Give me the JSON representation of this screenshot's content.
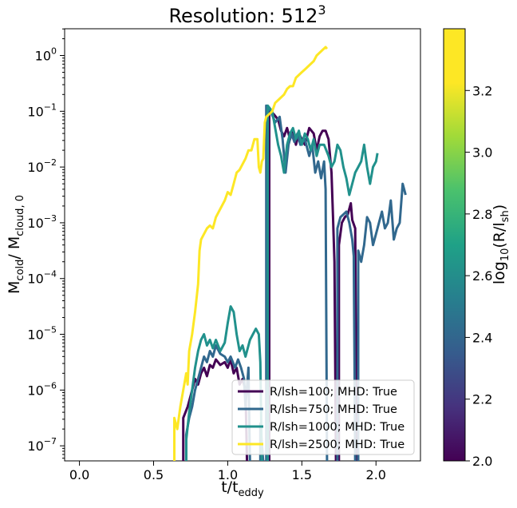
{
  "chart_data": {
    "type": "line",
    "title_main": "Resolution: 512",
    "title_sup": "3",
    "xlabel": {
      "main": "t/t",
      "sub": "eddy"
    },
    "ylabel": {
      "m1": "M",
      "s1": "cold",
      "m2": "/ M",
      "s2": "cloud, 0"
    },
    "xlim": [
      -0.1,
      2.3
    ],
    "ylim_log10": [
      -7.27,
      0.48
    ],
    "y_scale": "log",
    "x_ticks": [
      0.0,
      0.5,
      1.0,
      1.5,
      2.0
    ],
    "x_tick_labels": [
      "0.0",
      "0.5",
      "1.0",
      "1.5",
      "2.0"
    ],
    "y_ticks": [
      {
        "exp": 0,
        "mant": "10",
        "sup": "0"
      },
      {
        "exp": -1,
        "mant": "10",
        "sup": "−1"
      },
      {
        "exp": -2,
        "mant": "10",
        "sup": "−2"
      },
      {
        "exp": -3,
        "mant": "10",
        "sup": "−3"
      },
      {
        "exp": -4,
        "mant": "10",
        "sup": "−4"
      },
      {
        "exp": -5,
        "mant": "10",
        "sup": "−5"
      },
      {
        "exp": -6,
        "mant": "10",
        "sup": "−6"
      },
      {
        "exp": -7,
        "mant": "10",
        "sup": "−7"
      }
    ],
    "legend_position": "lower right",
    "series": [
      {
        "name": "R/lsh=100; MHD: True",
        "color": "#440154",
        "points": [
          [
            0.7,
            -7.3
          ],
          [
            0.7,
            -6.5
          ],
          [
            0.73,
            -6.3
          ],
          [
            0.75,
            -6.1
          ],
          [
            0.78,
            -5.8
          ],
          [
            0.8,
            -5.9
          ],
          [
            0.82,
            -5.7
          ],
          [
            0.84,
            -5.6
          ],
          [
            0.86,
            -5.75
          ],
          [
            0.88,
            -5.55
          ],
          [
            0.9,
            -5.6
          ],
          [
            0.92,
            -5.45
          ],
          [
            0.95,
            -5.55
          ],
          [
            0.98,
            -5.5
          ],
          [
            1.0,
            -5.6
          ],
          [
            1.02,
            -5.45
          ],
          [
            1.04,
            -5.7
          ],
          [
            1.06,
            -5.6
          ],
          [
            1.08,
            -5.9
          ],
          [
            1.1,
            -5.8
          ],
          [
            1.12,
            -6.0
          ],
          [
            1.13,
            -7.3
          ],
          null,
          [
            1.28,
            -7.3
          ],
          [
            1.28,
            -1.0
          ],
          [
            1.31,
            -1.05
          ],
          [
            1.34,
            -1.15
          ],
          [
            1.36,
            -1.35
          ],
          [
            1.38,
            -1.45
          ],
          [
            1.4,
            -1.3
          ],
          [
            1.42,
            -1.5
          ],
          [
            1.44,
            -1.35
          ],
          [
            1.46,
            -1.6
          ],
          [
            1.48,
            -1.4
          ],
          [
            1.5,
            -1.5
          ],
          [
            1.52,
            -1.6
          ],
          [
            1.55,
            -1.3
          ],
          [
            1.58,
            -1.4
          ],
          [
            1.6,
            -1.7
          ],
          [
            1.62,
            -1.45
          ],
          [
            1.64,
            -1.35
          ],
          [
            1.66,
            -1.35
          ],
          [
            1.68,
            -1.5
          ],
          [
            1.7,
            -2.1
          ],
          [
            1.71,
            -2.9
          ],
          [
            1.72,
            -3.7
          ],
          [
            1.73,
            -7.3
          ],
          null,
          [
            1.75,
            -7.3
          ],
          [
            1.75,
            -3.4
          ],
          [
            1.77,
            -3.0
          ],
          [
            1.79,
            -2.9
          ],
          [
            1.81,
            -2.85
          ],
          [
            1.83,
            -2.65
          ],
          [
            1.84,
            -2.95
          ],
          [
            1.86,
            -3.1
          ],
          [
            1.87,
            -7.3
          ]
        ]
      },
      {
        "name": "R/lsh=750; MHD: True",
        "color": "#31688e",
        "points": [
          [
            0.72,
            -7.3
          ],
          [
            0.72,
            -6.8
          ],
          [
            0.74,
            -6.5
          ],
          [
            0.76,
            -6.3
          ],
          [
            0.78,
            -6.0
          ],
          [
            0.8,
            -5.8
          ],
          [
            0.82,
            -5.6
          ],
          [
            0.84,
            -5.4
          ],
          [
            0.86,
            -5.5
          ],
          [
            0.88,
            -5.3
          ],
          [
            0.9,
            -5.4
          ],
          [
            0.92,
            -5.2
          ],
          [
            0.95,
            -5.35
          ],
          [
            0.98,
            -5.4
          ],
          [
            1.0,
            -5.5
          ],
          [
            1.02,
            -5.4
          ],
          [
            1.05,
            -5.6
          ],
          [
            1.07,
            -5.45
          ],
          [
            1.09,
            -5.6
          ],
          [
            1.11,
            -5.8
          ],
          [
            1.12,
            -6.3
          ],
          [
            1.14,
            -5.6
          ],
          [
            1.15,
            -7.3
          ],
          null,
          [
            1.22,
            -7.3
          ],
          [
            1.22,
            -6.6
          ],
          [
            1.24,
            -7.3
          ],
          null,
          [
            1.26,
            -7.3
          ],
          [
            1.26,
            -0.9
          ],
          [
            1.29,
            -1.0
          ],
          [
            1.32,
            -1.2
          ],
          [
            1.35,
            -1.1
          ],
          [
            1.37,
            -1.5
          ],
          [
            1.39,
            -2.1
          ],
          [
            1.41,
            -1.6
          ],
          [
            1.43,
            -1.4
          ],
          [
            1.45,
            -1.55
          ],
          [
            1.47,
            -1.4
          ],
          [
            1.49,
            -1.6
          ],
          [
            1.52,
            -1.5
          ],
          [
            1.55,
            -1.8
          ],
          [
            1.57,
            -1.6
          ],
          [
            1.59,
            -2.1
          ],
          [
            1.61,
            -1.9
          ],
          [
            1.63,
            -2.2
          ],
          [
            1.65,
            -1.9
          ],
          [
            1.66,
            -2.4
          ],
          [
            1.67,
            -7.3
          ],
          null,
          [
            1.74,
            -7.3
          ],
          [
            1.74,
            -3.1
          ],
          [
            1.76,
            -2.9
          ],
          [
            1.78,
            -2.85
          ],
          [
            1.8,
            -2.8
          ],
          [
            1.82,
            -3.0
          ],
          [
            1.84,
            -3.3
          ],
          [
            1.85,
            -3.6
          ],
          [
            1.86,
            -7.3
          ],
          null,
          [
            1.88,
            -7.3
          ],
          [
            1.88,
            -3.5
          ],
          [
            1.9,
            -3.7
          ],
          [
            1.92,
            -3.4
          ],
          [
            1.94,
            -2.9
          ],
          [
            1.96,
            -3.0
          ],
          [
            1.98,
            -3.4
          ],
          [
            2.0,
            -3.2
          ],
          [
            2.02,
            -3.0
          ],
          [
            2.04,
            -2.8
          ],
          [
            2.06,
            -3.1
          ],
          [
            2.08,
            -3.0
          ],
          [
            2.1,
            -2.6
          ],
          [
            2.12,
            -3.3
          ],
          [
            2.14,
            -3.1
          ],
          [
            2.16,
            -3.0
          ],
          [
            2.18,
            -2.3
          ],
          [
            2.2,
            -2.5
          ]
        ]
      },
      {
        "name": "R/lsh=1000; MHD: True",
        "color": "#21918c",
        "points": [
          [
            0.72,
            -7.3
          ],
          [
            0.72,
            -6.9
          ],
          [
            0.74,
            -6.4
          ],
          [
            0.76,
            -6.0
          ],
          [
            0.78,
            -5.6
          ],
          [
            0.8,
            -5.3
          ],
          [
            0.82,
            -5.1
          ],
          [
            0.84,
            -5.0
          ],
          [
            0.86,
            -5.2
          ],
          [
            0.88,
            -5.1
          ],
          [
            0.9,
            -5.25
          ],
          [
            0.92,
            -5.1
          ],
          [
            0.95,
            -5.3
          ],
          [
            0.98,
            -5.15
          ],
          [
            1.0,
            -4.8
          ],
          [
            1.02,
            -4.5
          ],
          [
            1.04,
            -4.6
          ],
          [
            1.06,
            -5.0
          ],
          [
            1.08,
            -5.3
          ],
          [
            1.1,
            -5.2
          ],
          [
            1.12,
            -5.4
          ],
          [
            1.15,
            -5.1
          ],
          [
            1.17,
            -5.0
          ],
          [
            1.19,
            -4.9
          ],
          [
            1.21,
            -5.0
          ],
          [
            1.22,
            -5.5
          ],
          [
            1.23,
            -7.3
          ],
          null,
          [
            1.27,
            -7.3
          ],
          [
            1.27,
            -0.9
          ],
          [
            1.3,
            -1.0
          ],
          [
            1.32,
            -1.3
          ],
          [
            1.34,
            -1.6
          ],
          [
            1.36,
            -1.8
          ],
          [
            1.38,
            -2.1
          ],
          [
            1.4,
            -1.6
          ],
          [
            1.42,
            -1.4
          ],
          [
            1.44,
            -1.3
          ],
          [
            1.46,
            -1.5
          ],
          [
            1.48,
            -1.35
          ],
          [
            1.5,
            -1.6
          ],
          [
            1.52,
            -1.4
          ],
          [
            1.54,
            -1.5
          ],
          [
            1.56,
            -1.7
          ],
          [
            1.58,
            -1.5
          ],
          [
            1.6,
            -1.8
          ],
          [
            1.62,
            -1.6
          ],
          [
            1.65,
            -1.6
          ],
          [
            1.68,
            -1.8
          ],
          [
            1.7,
            -2.0
          ],
          [
            1.72,
            -1.9
          ],
          [
            1.74,
            -1.6
          ],
          [
            1.76,
            -1.7
          ],
          [
            1.78,
            -2.0
          ],
          [
            1.8,
            -2.2
          ],
          [
            1.82,
            -2.5
          ],
          [
            1.84,
            -2.3
          ],
          [
            1.86,
            -2.1
          ],
          [
            1.88,
            -2.0
          ],
          [
            1.9,
            -1.9
          ],
          [
            1.92,
            -1.6
          ],
          [
            1.94,
            -2.0
          ],
          [
            1.96,
            -2.3
          ],
          [
            1.98,
            -2.0
          ],
          [
            2.0,
            -1.9
          ],
          [
            2.01,
            -1.75
          ]
        ]
      },
      {
        "name": "R/lsh=2500; MHD: True",
        "color": "#fde725",
        "points": [
          [
            0.64,
            -7.3
          ],
          [
            0.64,
            -6.5
          ],
          [
            0.66,
            -6.7
          ],
          [
            0.68,
            -6.3
          ],
          [
            0.7,
            -6.0
          ],
          [
            0.72,
            -5.7
          ],
          [
            0.73,
            -5.9
          ],
          [
            0.74,
            -5.3
          ],
          [
            0.76,
            -5.0
          ],
          [
            0.78,
            -4.6
          ],
          [
            0.8,
            -4.1
          ],
          [
            0.81,
            -3.5
          ],
          [
            0.82,
            -3.3
          ],
          [
            0.84,
            -3.2
          ],
          [
            0.86,
            -3.1
          ],
          [
            0.88,
            -3.05
          ],
          [
            0.9,
            -3.1
          ],
          [
            0.92,
            -2.9
          ],
          [
            0.95,
            -2.75
          ],
          [
            0.98,
            -2.6
          ],
          [
            1.0,
            -2.45
          ],
          [
            1.02,
            -2.5
          ],
          [
            1.04,
            -2.3
          ],
          [
            1.06,
            -2.1
          ],
          [
            1.08,
            -2.05
          ],
          [
            1.1,
            -1.95
          ],
          [
            1.12,
            -1.85
          ],
          [
            1.14,
            -1.7
          ],
          [
            1.16,
            -1.7
          ],
          [
            1.18,
            -1.5
          ],
          [
            1.2,
            -1.5
          ],
          [
            1.21,
            -2.0
          ],
          [
            1.22,
            -2.1
          ],
          [
            1.23,
            -1.9
          ],
          [
            1.24,
            -1.85
          ],
          [
            1.25,
            -1.2
          ],
          [
            1.26,
            -1.1
          ],
          [
            1.28,
            -1.05
          ],
          [
            1.3,
            -1.0
          ],
          [
            1.32,
            -0.85
          ],
          [
            1.34,
            -0.8
          ],
          [
            1.36,
            -0.75
          ],
          [
            1.38,
            -0.7
          ],
          [
            1.4,
            -0.6
          ],
          [
            1.42,
            -0.55
          ],
          [
            1.44,
            -0.55
          ],
          [
            1.46,
            -0.4
          ],
          [
            1.48,
            -0.35
          ],
          [
            1.5,
            -0.3
          ],
          [
            1.52,
            -0.25
          ],
          [
            1.54,
            -0.2
          ],
          [
            1.56,
            -0.15
          ],
          [
            1.58,
            -0.1
          ],
          [
            1.6,
            0.0
          ],
          [
            1.62,
            0.05
          ],
          [
            1.64,
            0.1
          ],
          [
            1.66,
            0.15
          ],
          [
            1.67,
            0.12
          ]
        ]
      }
    ],
    "colorbar": {
      "label_main": "log",
      "label_sub": "10",
      "label_rest": "(R/l",
      "label_sub2": "sh",
      "label_end": ")",
      "range": [
        2.0,
        3.4
      ],
      "ticks": [
        "2.0",
        "2.2",
        "2.4",
        "2.6",
        "2.8",
        "3.0",
        "3.2"
      ],
      "tick_values": [
        2.0,
        2.2,
        2.4,
        2.6,
        2.8,
        3.0,
        3.2
      ],
      "colormap": "viridis"
    }
  }
}
